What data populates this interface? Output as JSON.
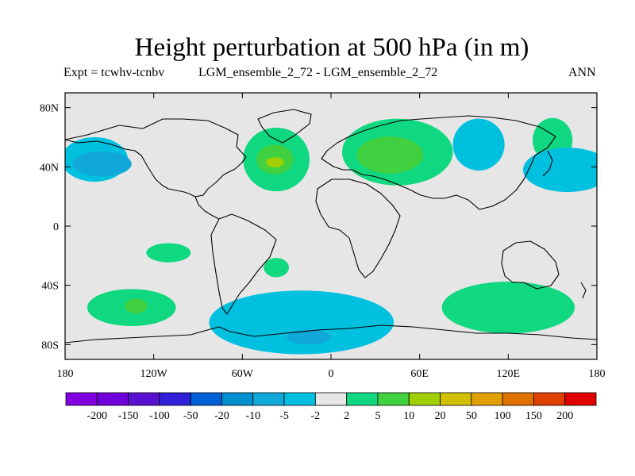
{
  "title": "Height perturbation at 500 hPa (in m)",
  "subtitle_left": "Expt = tcwhv-tcnbv",
  "subtitle_center": "LGM_ensemble_2_72 - LGM_ensemble_2_72",
  "subtitle_right": "ANN",
  "map": {
    "projection": "cylindrical equidistant",
    "lon_range": [
      -180,
      180
    ],
    "lat_range": [
      -90,
      90
    ],
    "y_ticks": [
      {
        "lat": 80,
        "label": "80N"
      },
      {
        "lat": 40,
        "label": "40N"
      },
      {
        "lat": 0,
        "label": "0"
      },
      {
        "lat": -40,
        "label": "40S"
      },
      {
        "lat": -80,
        "label": "80S"
      }
    ],
    "x_ticks": [
      {
        "lon": -180,
        "label": "180"
      },
      {
        "lon": -120,
        "label": "120W"
      },
      {
        "lon": -60,
        "label": "60W"
      },
      {
        "lon": 0,
        "label": "0"
      },
      {
        "lon": 60,
        "label": "60E"
      },
      {
        "lon": 120,
        "label": "120E"
      },
      {
        "lon": 180,
        "label": "180"
      }
    ],
    "background_color": "#e6e6e6",
    "coast_color": "#000000"
  },
  "colorbar": {
    "colors": [
      "#8000e0",
      "#7000d8",
      "#5a10d0",
      "#3020d8",
      "#0060d8",
      "#0090d0",
      "#10a8d8",
      "#00c0e0",
      "#e6e6e6",
      "#10d880",
      "#40d040",
      "#a0d000",
      "#d0c000",
      "#e0a000",
      "#e07000",
      "#e04000",
      "#e00000"
    ],
    "labels": [
      "-200",
      "-150",
      "-100",
      "-50",
      "-20",
      "-10",
      "-5",
      "-2",
      "2",
      "5",
      "10",
      "20",
      "50",
      "100",
      "150",
      "200"
    ]
  },
  "chart_data": {
    "type": "heatmap",
    "title": "Height perturbation at 500 hPa (in m)",
    "variable": "500 hPa height perturbation",
    "units": "m",
    "levels": [
      -200,
      -150,
      -100,
      -50,
      -20,
      -10,
      -5,
      -2,
      2,
      5,
      10,
      20,
      50,
      100,
      150,
      200
    ],
    "regions": [
      {
        "name": "N Pacific negative",
        "level": "-5",
        "lon": [
          -180,
          -135
        ],
        "lat": [
          30,
          60
        ],
        "center": [
          -160,
          45
        ],
        "color": "#00c0e0"
      },
      {
        "name": "N Pacific negative core",
        "level": "-10",
        "lon": [
          -180,
          -140
        ],
        "lat": [
          35,
          52
        ],
        "center": [
          -155,
          42
        ],
        "color": "#10a8d8"
      },
      {
        "name": "N Atlantic positive",
        "level": "5",
        "lon": [
          -60,
          -15
        ],
        "lat": [
          22,
          65
        ],
        "center": [
          -37,
          45
        ],
        "color": "#10d880"
      },
      {
        "name": "N Atlantic positive core",
        "level": "10",
        "lon": [
          -50,
          -25
        ],
        "lat": [
          35,
          55
        ],
        "center": [
          -38,
          45
        ],
        "color": "#40d040"
      },
      {
        "name": "N Atlantic maximum",
        "level": "20",
        "lon": [
          -44,
          -32
        ],
        "lat": [
          40,
          47
        ],
        "center": [
          -38,
          43
        ],
        "color": "#a0d000"
      },
      {
        "name": "Eurasia positive",
        "level": "5",
        "lon": [
          5,
          80
        ],
        "lat": [
          30,
          75
        ],
        "center": [
          45,
          50
        ],
        "color": "#10d880"
      },
      {
        "name": "Eurasia positive core",
        "level": "10",
        "lon": [
          20,
          65
        ],
        "lat": [
          35,
          60
        ],
        "center": [
          40,
          48
        ],
        "color": "#40d040"
      },
      {
        "name": "Siberia negative",
        "level": "-5",
        "lon": [
          85,
          120
        ],
        "lat": [
          35,
          70
        ],
        "center": [
          100,
          55
        ],
        "color": "#00c0e0"
      },
      {
        "name": "NE Asia positive",
        "level": "5",
        "lon": [
          138,
          165
        ],
        "lat": [
          40,
          70
        ],
        "center": [
          150,
          58
        ],
        "color": "#10d880"
      },
      {
        "name": "NW Pacific negative",
        "level": "-5",
        "lon": [
          120,
          180
        ],
        "lat": [
          20,
          50
        ],
        "center": [
          160,
          38
        ],
        "color": "#00c0e0"
      },
      {
        "name": "S Pacific positive",
        "level": "5",
        "lon": [
          -165,
          -105
        ],
        "lat": [
          -70,
          -45
        ],
        "center": [
          -135,
          -55
        ],
        "color": "#10d880"
      },
      {
        "name": "S Pacific positive core",
        "level": "10",
        "lon": [
          -140,
          -125
        ],
        "lat": [
          -60,
          -50
        ],
        "center": [
          -132,
          -54
        ],
        "color": "#40d040"
      },
      {
        "name": "S Atlantic / Antarctic negative",
        "level": "-5",
        "lon": [
          -80,
          45
        ],
        "lat": [
          -85,
          -42
        ],
        "center": [
          -20,
          -65
        ],
        "color": "#00c0e0"
      },
      {
        "name": "S Atlantic negative core",
        "level": "-10",
        "lon": [
          -30,
          0
        ],
        "lat": [
          -80,
          -70
        ],
        "center": [
          -15,
          -75
        ],
        "color": "#10a8d8"
      },
      {
        "name": "Indian Ocean positive",
        "level": "5",
        "lon": [
          75,
          165
        ],
        "lat": [
          -75,
          -40
        ],
        "center": [
          120,
          -55
        ],
        "color": "#10d880"
      },
      {
        "name": "S Atlantic subtropical positive",
        "level": "5",
        "lon": [
          -45,
          -28
        ],
        "lat": [
          -35,
          -22
        ],
        "center": [
          -37,
          -28
        ],
        "color": "#10d880"
      },
      {
        "name": "SE Pacific subtropical positive",
        "level": "5",
        "lon": [
          -125,
          -95
        ],
        "lat": [
          -25,
          -12
        ],
        "center": [
          -110,
          -18
        ],
        "color": "#10d880"
      }
    ]
  }
}
